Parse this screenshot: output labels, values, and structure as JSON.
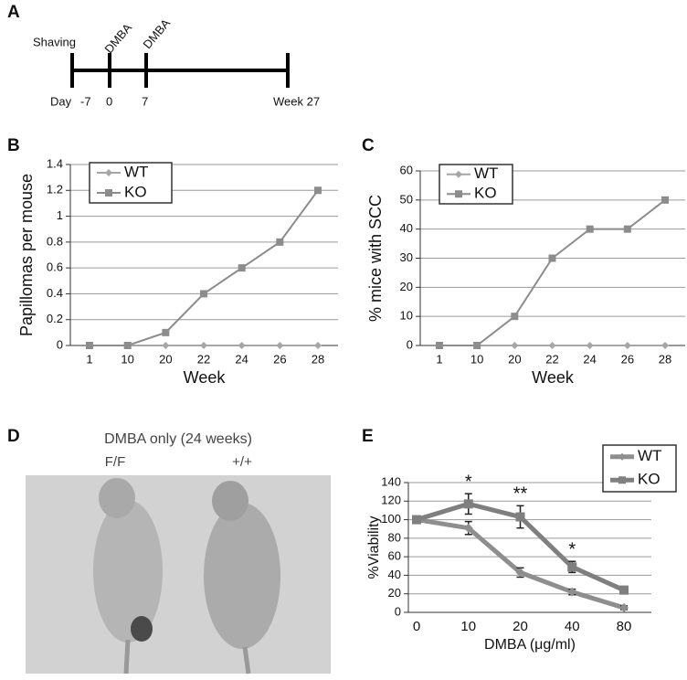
{
  "timeline": {
    "label": "A",
    "above": [
      "Shaving",
      "DMBA",
      "DMBA"
    ],
    "below": [
      "Day",
      "-7",
      "0",
      "7",
      "Week 27"
    ]
  },
  "photo": {
    "label": "D",
    "title": "DMBA only (24 weeks)",
    "left": "F/F",
    "right": "+/+"
  },
  "chart_data": [
    {
      "type": "line",
      "label": "B",
      "ylabel": "Papillomas per mouse",
      "xlabel": "Week",
      "categories": [
        "1",
        "10",
        "20",
        "22",
        "24",
        "26",
        "28"
      ],
      "series": [
        {
          "name": "WT",
          "color": "#a6a6a6",
          "marker": "diamond",
          "values": [
            0,
            0,
            0,
            0,
            0,
            0,
            0
          ]
        },
        {
          "name": "KO",
          "color": "#8c8c8c",
          "marker": "square",
          "values": [
            0,
            0,
            0.1,
            0.4,
            0.6,
            0.8,
            1.2
          ]
        }
      ],
      "ylim": [
        0,
        1.4
      ],
      "yticks": [
        0,
        0.2,
        0.4,
        0.6,
        0.8,
        1,
        1.2,
        1.4
      ],
      "grid": true,
      "legend": "upper left",
      "linewidth": 2
    },
    {
      "type": "line",
      "label": "C",
      "ylabel": "% mice with SCC",
      "xlabel": "Week",
      "categories": [
        "1",
        "10",
        "20",
        "22",
        "24",
        "26",
        "28"
      ],
      "series": [
        {
          "name": "WT",
          "color": "#a6a6a6",
          "marker": "diamond",
          "values": [
            0,
            0,
            0,
            0,
            0,
            0,
            0
          ]
        },
        {
          "name": "KO",
          "color": "#8c8c8c",
          "marker": "square",
          "values": [
            0,
            0,
            10,
            30,
            40,
            40,
            50
          ]
        }
      ],
      "ylim": [
        0,
        60
      ],
      "yticks": [
        0,
        10,
        20,
        30,
        40,
        50,
        60
      ],
      "grid": true,
      "legend": "upper left",
      "linewidth": 2
    },
    {
      "type": "line",
      "label": "E",
      "ylabel": "%Viability",
      "xlabel": "DMBA (μg/ml)",
      "categories": [
        "0",
        "10",
        "20",
        "40",
        "80"
      ],
      "series": [
        {
          "name": "WT",
          "color": "#8e8e8e",
          "marker": "diamond",
          "values": [
            100,
            91,
            43,
            22,
            5
          ],
          "errors": [
            2,
            7,
            5,
            3,
            2
          ]
        },
        {
          "name": "KO",
          "color": "#7f7f7f",
          "marker": "square",
          "values": [
            100,
            117,
            103,
            49,
            24
          ],
          "errors": [
            2,
            11,
            12,
            6,
            4
          ]
        }
      ],
      "annotations": [
        {
          "text": "*",
          "x": "10"
        },
        {
          "text": "**",
          "x": "20"
        },
        {
          "text": "*",
          "x": "40"
        }
      ],
      "ylim": [
        0,
        140
      ],
      "yticks": [
        0,
        20,
        40,
        60,
        80,
        100,
        120,
        140
      ],
      "grid": true,
      "legend": "upper right",
      "linewidth": 5
    }
  ]
}
